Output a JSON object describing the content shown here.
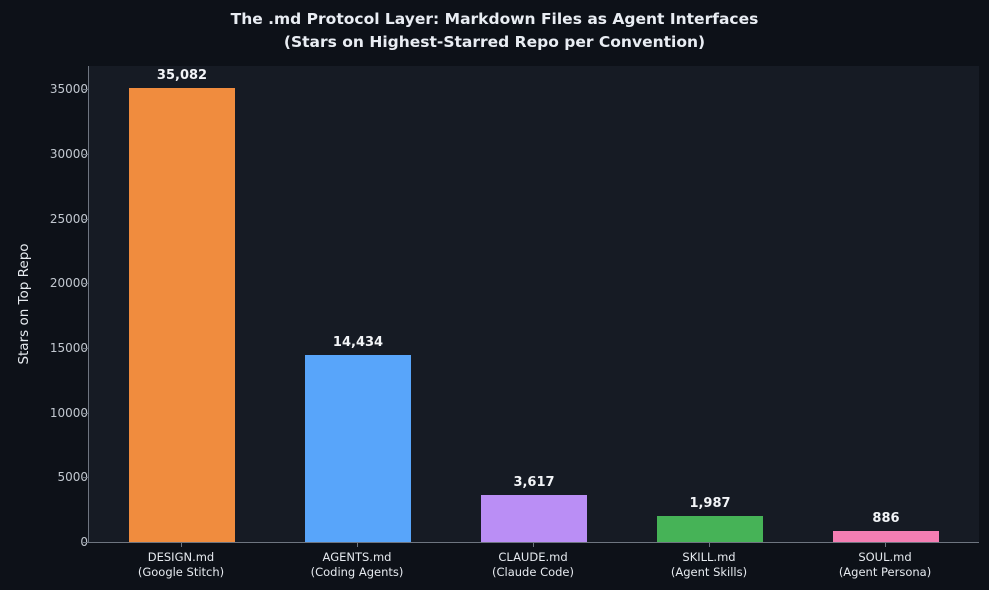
{
  "title": "The .md Protocol Layer: Markdown Files as Agent Interfaces",
  "subtitle": "(Stars on Highest-Starred Repo per Convention)",
  "chart_data": {
    "type": "bar",
    "categories": [
      "DESIGN.md",
      "AGENTS.md",
      "CLAUDE.md",
      "SKILL.md",
      "SOUL.md"
    ],
    "category_sublabels": [
      "(Google Stitch)",
      "(Coding Agents)",
      "(Claude Code)",
      "(Agent Skills)",
      "(Agent Persona)"
    ],
    "values": [
      35082,
      14434,
      3617,
      1987,
      886
    ],
    "value_labels": [
      "35,082",
      "14,434",
      "3,617",
      "1,987",
      "886"
    ],
    "bar_colors": [
      "#f08c3e",
      "#58a5fa",
      "#ba8ef5",
      "#46b357",
      "#f47eb3"
    ],
    "title": "The .md Protocol Layer: Markdown Files as Agent Interfaces",
    "subtitle": "(Stars on Highest-Starred Repo per Convention)",
    "xlabel": "",
    "ylabel": "Stars on Top Repo",
    "yticks": [
      0,
      5000,
      10000,
      15000,
      20000,
      25000,
      30000,
      35000
    ],
    "ylim": [
      0,
      36800
    ],
    "grid": false,
    "legend": "none",
    "colors": {
      "figure_background": "#0d1118",
      "plot_background": "#161b24",
      "spine": "#6e7580",
      "title_text": "#e9edf3",
      "tick_text": "#c2c8d0",
      "value_text": "#f2f4f7"
    }
  }
}
